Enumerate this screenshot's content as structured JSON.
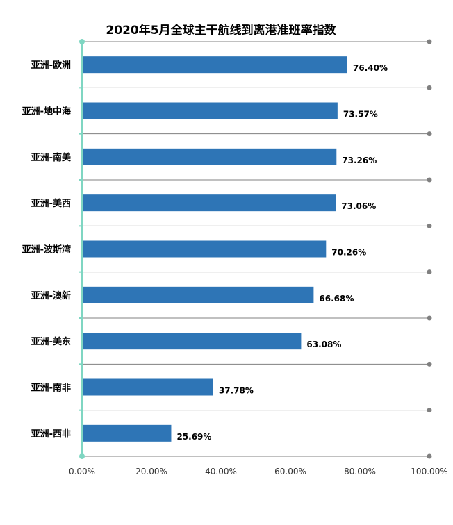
{
  "chart_data": {
    "type": "bar",
    "orientation": "horizontal",
    "title": "2020年5月全球主干航线到离港准班率指数",
    "categories": [
      "亚洲-欧洲",
      "亚洲-地中海",
      "亚洲-南美",
      "亚洲-美西",
      "亚洲-波斯湾",
      "亚洲-澳新",
      "亚洲-美东",
      "亚洲-南非",
      "亚洲-西非"
    ],
    "values": [
      76.4,
      73.57,
      73.26,
      73.06,
      70.26,
      66.68,
      63.08,
      37.78,
      25.69
    ],
    "value_labels": [
      "76.40%",
      "73.57%",
      "73.26%",
      "73.06%",
      "70.26%",
      "66.68%",
      "63.08%",
      "37.78%",
      "25.69%"
    ],
    "xlim": [
      0,
      100
    ],
    "xticks": [
      0,
      20,
      40,
      60,
      80,
      100
    ],
    "xtick_labels": [
      "0.00%",
      "20.00%",
      "40.00%",
      "60.00%",
      "80.00%",
      "100.00%"
    ],
    "xlabel": "",
    "ylabel": "",
    "grid": true,
    "legend": "none",
    "colors": {
      "bar": "#2E75B6",
      "gridline": "#808080",
      "axis": "#7FD6C2"
    }
  }
}
